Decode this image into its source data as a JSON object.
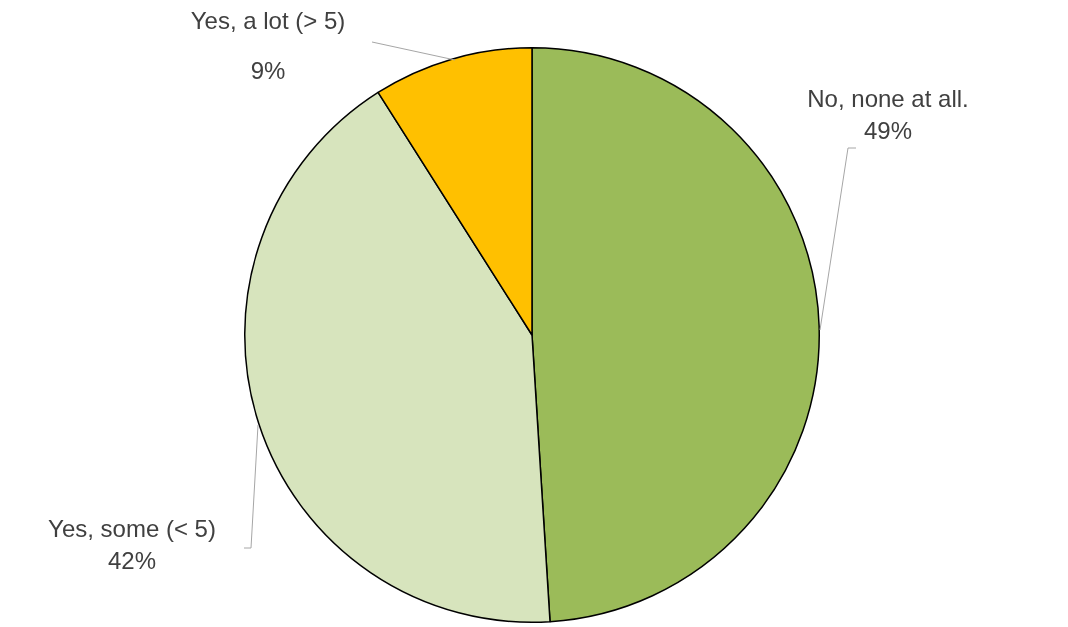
{
  "chart_data": {
    "type": "pie",
    "categories": [
      "No, none at all.",
      "Yes, some (< 5)",
      "Yes, a lot (> 5)"
    ],
    "values": [
      49,
      42,
      9
    ],
    "colors": [
      "#9bbb59",
      "#d7e4bd",
      "#ffc000"
    ],
    "value_labels": [
      "49%",
      "42%",
      "9%"
    ]
  }
}
